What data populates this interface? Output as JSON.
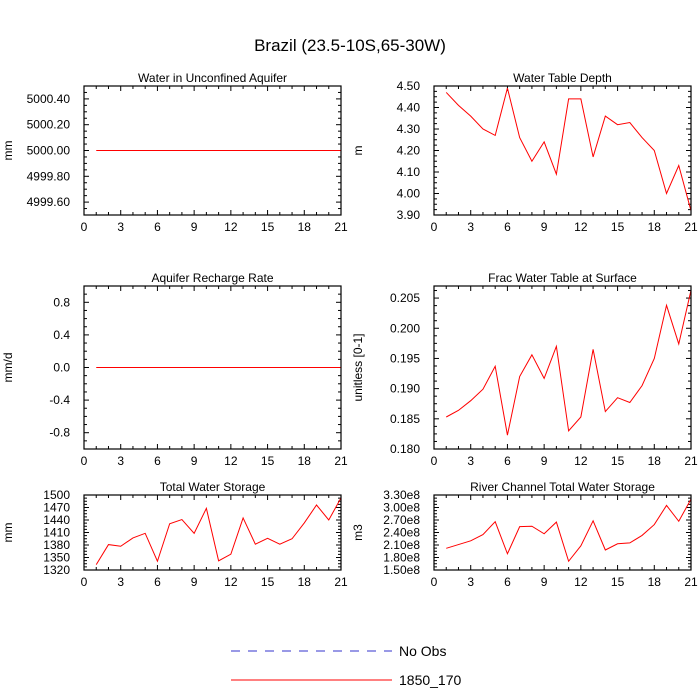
{
  "figure": {
    "title": "Brazil (23.5-10S,65-30W)"
  },
  "legend": {
    "position": "bottom-center",
    "entries": [
      {
        "label": "No Obs",
        "color": "#3333cc",
        "dash": true
      },
      {
        "label": "1850_170",
        "color": "#ff0000",
        "dash": false
      }
    ]
  },
  "chart_data": [
    {
      "type": "line",
      "title": "Water in Unconfined Aquifer",
      "ylabel": "mm",
      "xlim": [
        0,
        21
      ],
      "ylim": [
        4999.5,
        5000.5
      ],
      "xticks": [
        0,
        3,
        6,
        9,
        12,
        15,
        18,
        21
      ],
      "yticks": [
        4999.6,
        4999.8,
        5000.0,
        5000.2,
        5000.4
      ],
      "ytick_labels": [
        "4999.60",
        "4999.80",
        "5000.00",
        "5000.20",
        "5000.40"
      ],
      "x": [
        1,
        21
      ],
      "series": [
        {
          "name": "1850_170",
          "color": "#ff0000",
          "values": [
            5000.0,
            5000.0
          ]
        }
      ]
    },
    {
      "type": "line",
      "title": "Water Table Depth",
      "ylabel": "m",
      "xlim": [
        0,
        21
      ],
      "ylim": [
        3.9,
        4.5
      ],
      "xticks": [
        0,
        3,
        6,
        9,
        12,
        15,
        18,
        21
      ],
      "yticks": [
        3.9,
        4.0,
        4.1,
        4.2,
        4.3,
        4.4,
        4.5
      ],
      "ytick_labels": [
        "3.90",
        "4.00",
        "4.10",
        "4.20",
        "4.30",
        "4.40",
        "4.50"
      ],
      "x": [
        1,
        2,
        3,
        4,
        5,
        6,
        7,
        8,
        9,
        10,
        11,
        12,
        13,
        14,
        15,
        16,
        17,
        18,
        19,
        20,
        21
      ],
      "series": [
        {
          "name": "1850_170",
          "color": "#ff0000",
          "values": [
            4.47,
            4.41,
            4.36,
            4.3,
            4.27,
            4.49,
            4.26,
            4.15,
            4.24,
            4.09,
            4.44,
            4.44,
            4.17,
            4.36,
            4.32,
            4.33,
            4.26,
            4.2,
            4.0,
            4.13,
            3.92
          ]
        }
      ]
    },
    {
      "type": "line",
      "title": "Aquifer Recharge Rate",
      "ylabel": "mm/d",
      "xlim": [
        0,
        21
      ],
      "ylim": [
        -1.0,
        1.0
      ],
      "xticks": [
        0,
        3,
        6,
        9,
        12,
        15,
        18,
        21
      ],
      "yticks": [
        -0.8,
        -0.4,
        0.0,
        0.4,
        0.8
      ],
      "ytick_labels": [
        "-0.8",
        "-0.4",
        "0.0",
        "0.4",
        "0.8"
      ],
      "x": [
        1,
        21
      ],
      "series": [
        {
          "name": "1850_170",
          "color": "#ff0000",
          "values": [
            0.0,
            0.0
          ]
        }
      ]
    },
    {
      "type": "line",
      "title": "Frac Water Table at Surface",
      "ylabel": "unitless [0-1]",
      "xlim": [
        0,
        21
      ],
      "ylim": [
        0.18,
        0.207
      ],
      "xticks": [
        0,
        3,
        6,
        9,
        12,
        15,
        18,
        21
      ],
      "yticks": [
        0.18,
        0.185,
        0.19,
        0.195,
        0.2,
        0.205
      ],
      "ytick_labels": [
        "0.180",
        "0.185",
        "0.190",
        "0.195",
        "0.200",
        "0.205"
      ],
      "x": [
        1,
        2,
        3,
        4,
        5,
        6,
        7,
        8,
        9,
        10,
        11,
        12,
        13,
        14,
        15,
        16,
        17,
        18,
        19,
        20,
        21
      ],
      "series": [
        {
          "name": "1850_170",
          "color": "#ff0000",
          "values": [
            0.1853,
            0.1864,
            0.188,
            0.1899,
            0.1937,
            0.1823,
            0.192,
            0.1956,
            0.1917,
            0.197,
            0.183,
            0.1853,
            0.1965,
            0.1862,
            0.1885,
            0.1877,
            0.1905,
            0.195,
            0.2038,
            0.1974,
            0.2063
          ]
        }
      ]
    },
    {
      "type": "line",
      "title": "Total Water Storage",
      "ylabel": "mm",
      "xlim": [
        0,
        21
      ],
      "ylim": [
        1320,
        1500
      ],
      "xticks": [
        0,
        3,
        6,
        9,
        12,
        15,
        18,
        21
      ],
      "yticks": [
        1320,
        1350,
        1380,
        1410,
        1440,
        1470,
        1500
      ],
      "ytick_labels": [
        "1320",
        "1350",
        "1380",
        "1410",
        "1440",
        "1470",
        "1500"
      ],
      "x": [
        1,
        2,
        3,
        4,
        5,
        6,
        7,
        8,
        9,
        10,
        11,
        12,
        13,
        14,
        15,
        16,
        17,
        18,
        19,
        20,
        21
      ],
      "series": [
        {
          "name": "1850_170",
          "color": "#ff0000",
          "values": [
            1333,
            1381,
            1377,
            1397,
            1408,
            1341,
            1431,
            1441,
            1408,
            1468,
            1342,
            1358,
            1445,
            1382,
            1396,
            1382,
            1395,
            1433,
            1476,
            1440,
            1493
          ]
        }
      ]
    },
    {
      "type": "line",
      "title": "River Channel Total Water Storage",
      "ylabel": "m3",
      "xlim": [
        0,
        21
      ],
      "ylim": [
        150000000,
        330000000
      ],
      "xticks": [
        0,
        3,
        6,
        9,
        12,
        15,
        18,
        21
      ],
      "yticks": [
        150000000,
        180000000,
        210000000,
        240000000,
        270000000,
        300000000,
        330000000
      ],
      "ytick_labels": [
        "1.50e8",
        "1.80e8",
        "2.10e8",
        "2.40e8",
        "2.70e8",
        "3.00e8",
        "3.30e8"
      ],
      "x": [
        1,
        2,
        3,
        4,
        5,
        6,
        7,
        8,
        9,
        10,
        11,
        12,
        13,
        14,
        15,
        16,
        17,
        18,
        19,
        20,
        21
      ],
      "series": [
        {
          "name": "1850_170",
          "color": "#ff0000",
          "values": [
            202000000,
            211000000,
            220000000,
            235000000,
            266000000,
            189000000,
            254000000,
            255000000,
            237000000,
            265000000,
            171000000,
            208000000,
            268000000,
            198000000,
            213000000,
            215000000,
            233000000,
            259000000,
            305000000,
            267000000,
            320000000
          ]
        }
      ]
    }
  ]
}
